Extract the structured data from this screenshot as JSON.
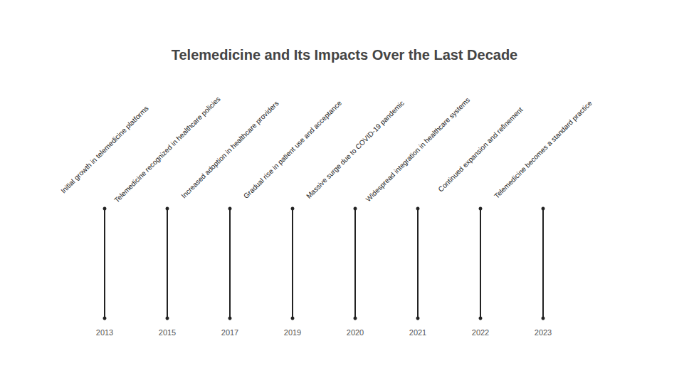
{
  "chart_data": {
    "type": "timeline",
    "title": "Telemedicine and Its Impacts Over the Last Decade",
    "categories": [
      "2013",
      "2015",
      "2017",
      "2019",
      "2020",
      "2021",
      "2022",
      "2023"
    ],
    "annotations": [
      "Initial growth in telemedicine platforms",
      "Telemedicine recognized in healthcare policies",
      "Increased adoption in healthcare providers",
      "Gradual rise in patient use and acceptance",
      "Massive surge due to COVID-19 pandemic",
      "Widespread integration in healthcare systems",
      "Continued expansion and refinement",
      "Telemedicine becomes a standard practice"
    ],
    "color": "#222222",
    "marker": "circle",
    "tick_labels": "x"
  }
}
